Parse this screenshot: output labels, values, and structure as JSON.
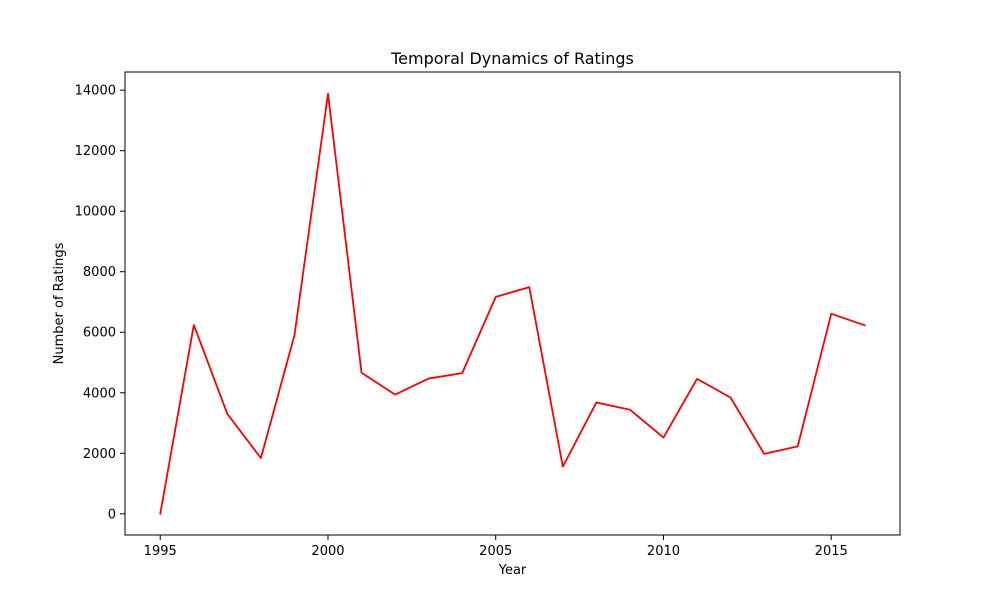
{
  "chart_data": {
    "type": "line",
    "title": "Temporal Dynamics of Ratings",
    "xlabel": "Year",
    "ylabel": "Number of Ratings",
    "xlim": [
      1993.95,
      2017.05
    ],
    "ylim": [
      -700,
      14600
    ],
    "x_ticks": [
      1995,
      2000,
      2005,
      2010,
      2015
    ],
    "y_ticks": [
      0,
      2000,
      4000,
      6000,
      8000,
      10000,
      12000,
      14000
    ],
    "grid": false,
    "legend": "none",
    "colors": {
      "line": "#ff0000",
      "axes": "#000000",
      "background": "#ffffff"
    },
    "series": [
      {
        "x": [
          1995,
          1996,
          1997,
          1998,
          1999,
          2000,
          2001,
          2002,
          2003,
          2004,
          2005,
          2006,
          2007,
          2008,
          2009,
          2010,
          2011,
          2012,
          2013,
          2014,
          2015,
          2016
        ],
        "values": [
          0,
          6240,
          3300,
          1840,
          5900,
          13880,
          4660,
          3940,
          4470,
          4650,
          7170,
          7490,
          1560,
          3680,
          3440,
          2520,
          4460,
          3840,
          1980,
          2230,
          6610,
          6230
        ]
      }
    ]
  }
}
